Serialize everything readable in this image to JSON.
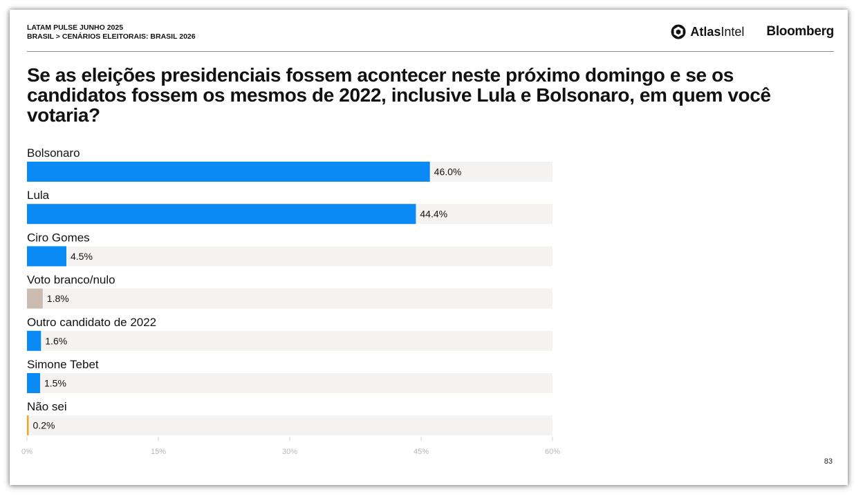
{
  "header": {
    "line1": "LATAM PULSE JUNHO 2025",
    "line2": "BRASIL > CENÁRIOS ELEITORAIS: BRASIL 2026"
  },
  "logos": {
    "atlas_bold": "Atlas",
    "atlas_regular": "Intel",
    "bloomberg": "Bloomberg"
  },
  "page_number": "83",
  "colors": {
    "blue": "#0a8af5",
    "beige": "#cbbbb1",
    "orange": "#f5a623",
    "track": "#f4f3f1"
  },
  "chart_data": {
    "type": "bar",
    "orientation": "horizontal",
    "title": "Se as eleições presidenciais fossem acontecer neste próximo domingo e se os candidatos fossem os mesmos de 2022, inclusive Lula e Bolsonaro, em quem você votaria?",
    "categories": [
      "Bolsonaro",
      "Lula",
      "Ciro Gomes",
      "Voto branco/nulo",
      "Outro candidato de 2022",
      "Simone Tebet",
      "Não sei"
    ],
    "values": [
      46.0,
      44.4,
      4.5,
      1.8,
      1.6,
      1.5,
      0.2
    ],
    "value_labels": [
      "46.0%",
      "44.4%",
      "4.5%",
      "1.8%",
      "1.6%",
      "1.5%",
      "0.2%"
    ],
    "bar_colors": [
      "#0a8af5",
      "#0a8af5",
      "#0a8af5",
      "#cbbbb1",
      "#0a8af5",
      "#0a8af5",
      "#f5a623"
    ],
    "xlim": [
      0,
      60
    ],
    "xticks": [
      0,
      15,
      30,
      45,
      60
    ],
    "xtick_labels": [
      "0%",
      "15%",
      "30%",
      "45%",
      "60%"
    ],
    "grid": false,
    "legend": "none"
  }
}
